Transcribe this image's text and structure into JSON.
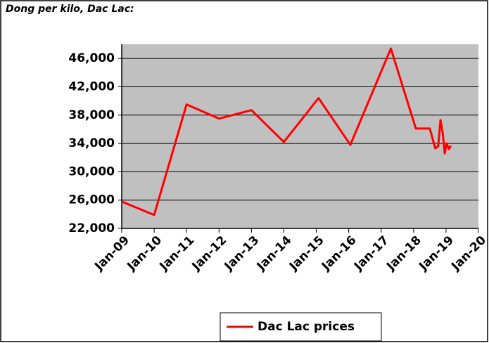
{
  "chart_data": {
    "type": "line",
    "title": "Dong per kilo, Dac Lac:",
    "x": [
      2009.0,
      2010.0,
      2011.0,
      2012.0,
      2013.0,
      2014.0,
      2015.07,
      2016.05,
      2017.3,
      2018.07,
      2018.5,
      2018.67,
      2018.76,
      2018.83,
      2018.9,
      2018.96,
      2019.02,
      2019.09,
      2019.15
    ],
    "series": [
      {
        "name": "Dac Lac prices",
        "color": "#ff0000",
        "values": [
          25800,
          23900,
          39500,
          37500,
          38700,
          34200,
          40400,
          33800,
          47400,
          36100,
          36100,
          33300,
          33600,
          37300,
          35400,
          32600,
          34000,
          33200,
          33700
        ]
      }
    ],
    "xlim": [
      2009,
      2020
    ],
    "xticks": [
      {
        "value": 2009,
        "label": "Jan-09"
      },
      {
        "value": 2010,
        "label": "Jan-10"
      },
      {
        "value": 2011,
        "label": "Jan-11"
      },
      {
        "value": 2012,
        "label": "Jan-12"
      },
      {
        "value": 2013,
        "label": "Jan-13"
      },
      {
        "value": 2014,
        "label": "Jan-14"
      },
      {
        "value": 2015,
        "label": "Jan-15"
      },
      {
        "value": 2016,
        "label": "Jan-16"
      },
      {
        "value": 2017,
        "label": "Jan-17"
      },
      {
        "value": 2018,
        "label": "Jan-18"
      },
      {
        "value": 2019,
        "label": "Jan-19"
      },
      {
        "value": 2020,
        "label": "Jan-20"
      }
    ],
    "ylim": [
      22000,
      48000
    ],
    "yticks": [
      {
        "value": 22000,
        "label": "22,000"
      },
      {
        "value": 26000,
        "label": "26,000"
      },
      {
        "value": 30000,
        "label": "30,000"
      },
      {
        "value": 34000,
        "label": "34,000"
      },
      {
        "value": 38000,
        "label": "38,000"
      },
      {
        "value": 42000,
        "label": "42,000"
      },
      {
        "value": 46000,
        "label": "46,000"
      }
    ],
    "grid": true
  }
}
